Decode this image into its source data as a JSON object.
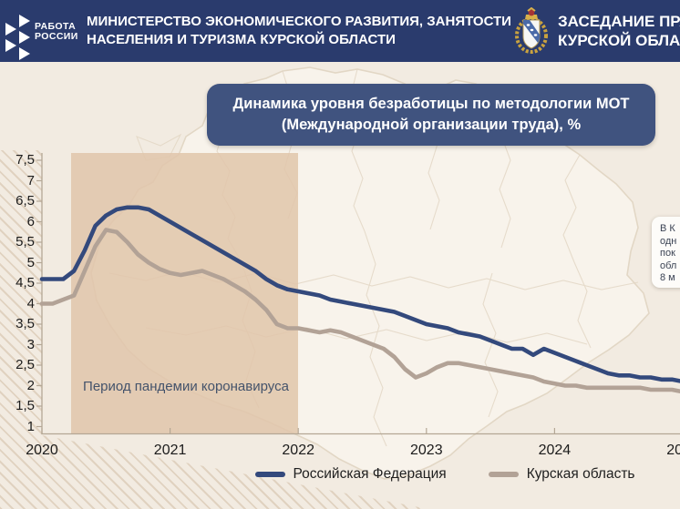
{
  "header": {
    "logo_line1": "РАБОТА",
    "logo_line2": "РОССИИ",
    "ministry_line1": "МИНИСТЕРСТВО ЭКОНОМИЧЕСКОГО РАЗВИТИЯ, ЗАНЯТОСТИ",
    "ministry_line2": "НАСЕЛЕНИЯ И ТУРИЗМА КУРСКОЙ ОБЛАСТИ",
    "session_line1": "ЗАСЕДАНИЕ ПРА",
    "session_line2": "КУРСКОЙ ОБЛАС",
    "crest_icon": "kursk-oblast-coat-of-arms",
    "logo_icon": "rabota-rossii-arrows"
  },
  "title_line1": "Динамика уровня безработицы по методологии МОТ",
  "title_line2": "(Международной организации труда), %",
  "annotation": {
    "pandemic_label": "Период пандемии коронавируса",
    "pandemic_span_years": [
      "2020",
      "2022"
    ]
  },
  "info_box_lines": [
    "В К",
    "одн",
    "пок",
    "обл",
    "8 м"
  ],
  "chart_data": {
    "type": "line",
    "title": "Динамика уровня безработицы по методологии МОТ (Международной организации труда), %",
    "x_unit": "month",
    "x_start": "2020-01",
    "x_tick_labels": [
      "2020",
      "2021",
      "2022",
      "2023",
      "2024",
      "2025"
    ],
    "y_tick_labels": [
      "7,5",
      "7",
      "6,5",
      "6",
      "5,5",
      "5",
      "4,5",
      "4",
      "3,5",
      "3",
      "2,5",
      "2",
      "1,5",
      "1"
    ],
    "y_tick_values": [
      7.5,
      7,
      6.5,
      6,
      5.5,
      5,
      4.5,
      4,
      3.5,
      3,
      2.5,
      2,
      1.5,
      1
    ],
    "ylim": [
      1,
      7.5
    ],
    "grid": false,
    "legend_position": "bottom-center",
    "highlight_region": {
      "label": "Период пандемии коронавируса",
      "x_from": "2020-04",
      "x_to": "2022-01"
    },
    "series": [
      {
        "name": "Российская Федерация",
        "color": "#33497c",
        "values": [
          4.6,
          4.6,
          4.6,
          4.8,
          5.3,
          5.9,
          6.15,
          6.3,
          6.35,
          6.35,
          6.3,
          6.15,
          6.0,
          5.85,
          5.7,
          5.55,
          5.4,
          5.25,
          5.1,
          4.95,
          4.8,
          4.6,
          4.45,
          4.35,
          4.3,
          4.25,
          4.2,
          4.1,
          4.05,
          4.0,
          3.95,
          3.9,
          3.85,
          3.8,
          3.7,
          3.6,
          3.5,
          3.45,
          3.4,
          3.3,
          3.25,
          3.2,
          3.1,
          3.0,
          2.9,
          2.9,
          2.75,
          2.9,
          2.8,
          2.7,
          2.6,
          2.5,
          2.4,
          2.3,
          2.25,
          2.25,
          2.2,
          2.2,
          2.15,
          2.15,
          2.1
        ]
      },
      {
        "name": "Курская область",
        "color": "#b2a296",
        "values": [
          4.0,
          4.0,
          4.1,
          4.2,
          4.8,
          5.4,
          5.8,
          5.75,
          5.5,
          5.2,
          5.0,
          4.85,
          4.75,
          4.7,
          4.75,
          4.8,
          4.7,
          4.6,
          4.45,
          4.3,
          4.1,
          3.85,
          3.5,
          3.4,
          3.4,
          3.35,
          3.3,
          3.35,
          3.3,
          3.2,
          3.1,
          3.0,
          2.9,
          2.7,
          2.4,
          2.2,
          2.3,
          2.45,
          2.55,
          2.55,
          2.5,
          2.45,
          2.4,
          2.35,
          2.3,
          2.25,
          2.2,
          2.1,
          2.05,
          2.0,
          2.0,
          1.95,
          1.95,
          1.95,
          1.95,
          1.95,
          1.95,
          1.9,
          1.9,
          1.9,
          1.85
        ]
      }
    ]
  },
  "colors": {
    "header_bg": "#2a3b6d",
    "title_box_bg": "#40537f",
    "slide_bg": "#f2ebe1",
    "pandemic_fill": "#e0c6aa",
    "rf_line": "#33497c",
    "kursk_line": "#b2a296",
    "axis": "#b4a795",
    "map_fill": "#f9f4ec",
    "map_stroke": "#e2d6c4"
  }
}
